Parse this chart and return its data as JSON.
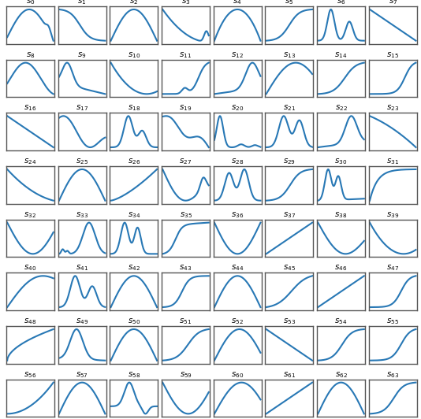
{
  "n_shapes": 64,
  "n_cols": 8,
  "n_rows": 8,
  "line_color": "#2878b5",
  "line_width": 1.5,
  "bg_color": "#ffffff",
  "border_color": "#555555",
  "title_fontsize": 7.5
}
